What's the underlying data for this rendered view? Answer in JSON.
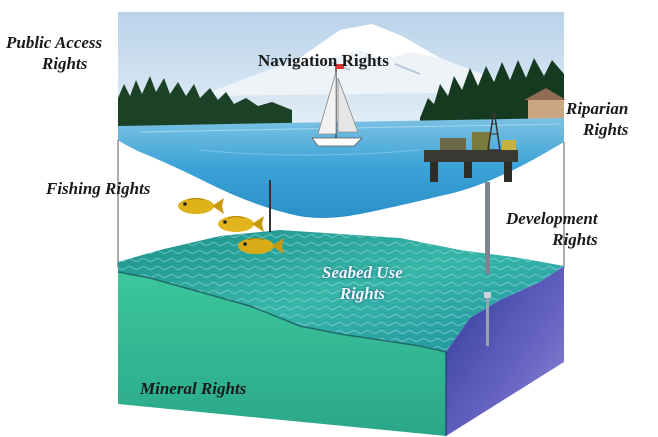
{
  "labels": {
    "public_access": [
      "Public Access",
      "Rights"
    ],
    "navigation": "Navigation Rights",
    "riparian": [
      "Riparian",
      "Rights"
    ],
    "fishing": "Fishing Rights",
    "development": [
      "Development",
      "Rights"
    ],
    "seabed_use": [
      "Seabed Use",
      "Rights"
    ],
    "mineral": "Mineral Rights"
  },
  "colors": {
    "sky": "#c9dcef",
    "water_surface": "#47a9d8",
    "water_column": "#ffffff",
    "seabed": "#2fae99",
    "sediment": "#3ab79a",
    "side_wall": "#5b59b8",
    "forest": "#173b1f",
    "fish": "#e0b21a"
  },
  "icons": [
    "sailboat-icon",
    "oil-platform-icon",
    "fish-icon",
    "mountain-icon",
    "well-pipe-icon"
  ]
}
